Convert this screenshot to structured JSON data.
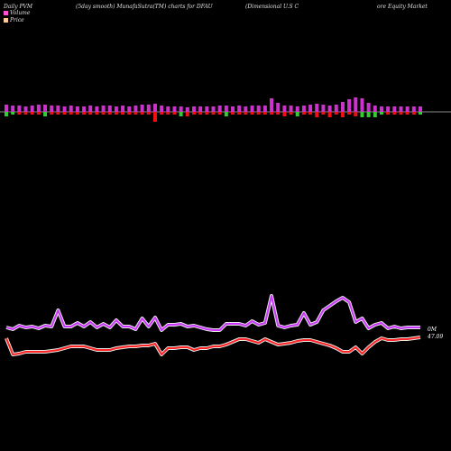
{
  "header": {
    "left": "Daily PVM",
    "mid": "(5day smooth) MunafaSutra(TM) charts for DFAU",
    "right_a": "(Dimensional U.S C",
    "right_b": "ore  Equity Market"
  },
  "legend": {
    "volume": "Volume",
    "price": "Price",
    "volume_color": "#ff4fd8",
    "price_color": "#ffcc99"
  },
  "labels": {
    "volume_end": "0M",
    "price_end": "47.09"
  },
  "colors": {
    "up": "#cc33cc",
    "down_red": "#ee1111",
    "down_green": "#33cc33",
    "volume_line": "#cc33ff",
    "price_line": "#ff2222",
    "baseline": "#888888"
  },
  "chart_data": {
    "type": "bar",
    "pvm_bars": [
      {
        "h": 8,
        "c": "up",
        "below": 5,
        "bc": "green"
      },
      {
        "h": 7,
        "c": "up",
        "below": 3,
        "bc": "green"
      },
      {
        "h": 7,
        "c": "up",
        "below": 3,
        "bc": "red"
      },
      {
        "h": 6,
        "c": "up",
        "below": 3,
        "bc": "red"
      },
      {
        "h": 7,
        "c": "up",
        "below": 3,
        "bc": "red"
      },
      {
        "h": 8,
        "c": "up",
        "below": 3,
        "bc": "red"
      },
      {
        "h": 8,
        "c": "up",
        "below": 5,
        "bc": "green"
      },
      {
        "h": 7,
        "c": "up",
        "below": 3,
        "bc": "red"
      },
      {
        "h": 7,
        "c": "up",
        "below": 3,
        "bc": "red"
      },
      {
        "h": 6,
        "c": "up",
        "below": 3,
        "bc": "red"
      },
      {
        "h": 7,
        "c": "up",
        "below": 3,
        "bc": "red"
      },
      {
        "h": 6,
        "c": "up",
        "below": 3,
        "bc": "red"
      },
      {
        "h": 6,
        "c": "up",
        "below": 3,
        "bc": "red"
      },
      {
        "h": 7,
        "c": "up",
        "below": 3,
        "bc": "red"
      },
      {
        "h": 6,
        "c": "up",
        "below": 3,
        "bc": "red"
      },
      {
        "h": 7,
        "c": "up",
        "below": 3,
        "bc": "red"
      },
      {
        "h": 7,
        "c": "up",
        "below": 3,
        "bc": "red"
      },
      {
        "h": 6,
        "c": "up",
        "below": 3,
        "bc": "red"
      },
      {
        "h": 7,
        "c": "up",
        "below": 3,
        "bc": "red"
      },
      {
        "h": 6,
        "c": "up",
        "below": 3,
        "bc": "red"
      },
      {
        "h": 7,
        "c": "up",
        "below": 3,
        "bc": "red"
      },
      {
        "h": 8,
        "c": "up",
        "below": 3,
        "bc": "red"
      },
      {
        "h": 8,
        "c": "up",
        "below": 3,
        "bc": "red"
      },
      {
        "h": 9,
        "c": "up",
        "below": 11,
        "bc": "red"
      },
      {
        "h": 7,
        "c": "up",
        "below": 3,
        "bc": "red"
      },
      {
        "h": 6,
        "c": "up",
        "below": 3,
        "bc": "red"
      },
      {
        "h": 6,
        "c": "up",
        "below": 3,
        "bc": "red"
      },
      {
        "h": 6,
        "c": "up",
        "below": 5,
        "bc": "green"
      },
      {
        "h": 5,
        "c": "up",
        "below": 5,
        "bc": "red"
      },
      {
        "h": 6,
        "c": "up",
        "below": 3,
        "bc": "red"
      },
      {
        "h": 6,
        "c": "up",
        "below": 3,
        "bc": "red"
      },
      {
        "h": 6,
        "c": "up",
        "below": 3,
        "bc": "red"
      },
      {
        "h": 6,
        "c": "up",
        "below": 3,
        "bc": "red"
      },
      {
        "h": 7,
        "c": "up",
        "below": 3,
        "bc": "red"
      },
      {
        "h": 7,
        "c": "up",
        "below": 5,
        "bc": "green"
      },
      {
        "h": 6,
        "c": "up",
        "below": 3,
        "bc": "red"
      },
      {
        "h": 7,
        "c": "up",
        "below": 3,
        "bc": "red"
      },
      {
        "h": 6,
        "c": "up",
        "below": 3,
        "bc": "red"
      },
      {
        "h": 7,
        "c": "up",
        "below": 3,
        "bc": "red"
      },
      {
        "h": 7,
        "c": "up",
        "below": 3,
        "bc": "red"
      },
      {
        "h": 7,
        "c": "up",
        "below": 3,
        "bc": "red"
      },
      {
        "h": 15,
        "c": "up",
        "below": 3,
        "bc": "red"
      },
      {
        "h": 10,
        "c": "up",
        "below": 3,
        "bc": "red"
      },
      {
        "h": 7,
        "c": "up",
        "below": 5,
        "bc": "red"
      },
      {
        "h": 7,
        "c": "up",
        "below": 3,
        "bc": "red"
      },
      {
        "h": 6,
        "c": "up",
        "below": 5,
        "bc": "green"
      },
      {
        "h": 7,
        "c": "up",
        "below": 3,
        "bc": "red"
      },
      {
        "h": 8,
        "c": "up",
        "below": 3,
        "bc": "red"
      },
      {
        "h": 9,
        "c": "up",
        "below": 6,
        "bc": "red"
      },
      {
        "h": 8,
        "c": "up",
        "below": 3,
        "bc": "red"
      },
      {
        "h": 7,
        "c": "up",
        "below": 6,
        "bc": "red"
      },
      {
        "h": 8,
        "c": "up",
        "below": 3,
        "bc": "red"
      },
      {
        "h": 11,
        "c": "up",
        "below": 6,
        "bc": "red"
      },
      {
        "h": 14,
        "c": "up",
        "below": 3,
        "bc": "red"
      },
      {
        "h": 16,
        "c": "up",
        "below": 5,
        "bc": "red"
      },
      {
        "h": 15,
        "c": "up",
        "below": 6,
        "bc": "green"
      },
      {
        "h": 10,
        "c": "up",
        "below": 6,
        "bc": "green"
      },
      {
        "h": 7,
        "c": "up",
        "below": 6,
        "bc": "green"
      },
      {
        "h": 6,
        "c": "up",
        "below": 3,
        "bc": "green"
      },
      {
        "h": 6,
        "c": "up",
        "below": 3,
        "bc": "red"
      },
      {
        "h": 6,
        "c": "up",
        "below": 3,
        "bc": "red"
      },
      {
        "h": 6,
        "c": "up",
        "below": 3,
        "bc": "red"
      },
      {
        "h": 6,
        "c": "up",
        "below": 3,
        "bc": "red"
      },
      {
        "h": 6,
        "c": "up",
        "below": 3,
        "bc": "red"
      },
      {
        "h": 6,
        "c": "up",
        "below": 3,
        "bc": "green"
      }
    ],
    "volume_line": [
      363,
      365,
      361,
      363,
      362,
      364,
      361,
      362,
      344,
      362,
      362,
      358,
      362,
      357,
      363,
      359,
      363,
      355,
      362,
      362,
      365,
      353,
      362,
      352,
      366,
      360,
      360,
      359,
      362,
      361,
      363,
      365,
      366,
      366,
      359,
      359,
      359,
      361,
      356,
      360,
      358,
      328,
      361,
      363,
      361,
      360,
      347,
      360,
      357,
      344,
      339,
      334,
      330,
      335,
      357,
      353,
      364,
      360,
      358,
      364,
      362,
      364,
      363,
      363,
      363
    ],
    "price_line": [
      375,
      393,
      392,
      390,
      390,
      390,
      390,
      389,
      388,
      386,
      384,
      384,
      384,
      386,
      388,
      388,
      388,
      386,
      385,
      384,
      384,
      383,
      383,
      381,
      393,
      386,
      386,
      385,
      385,
      388,
      386,
      386,
      384,
      384,
      382,
      379,
      376,
      376,
      378,
      380,
      376,
      379,
      382,
      381,
      380,
      378,
      377,
      377,
      379,
      381,
      383,
      386,
      390,
      390,
      385,
      392,
      385,
      379,
      375,
      377,
      377,
      376,
      376,
      375,
      374
    ]
  }
}
